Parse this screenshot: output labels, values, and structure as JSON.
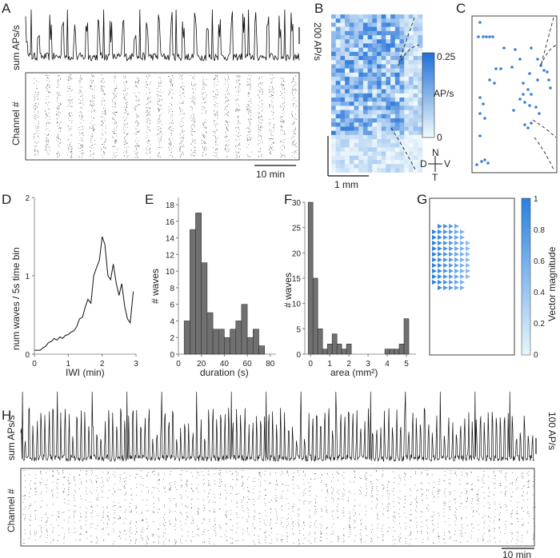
{
  "panels": {
    "A": "A",
    "B": "B",
    "C": "C",
    "D": "D",
    "E": "E",
    "F": "F",
    "G": "G",
    "H": "H"
  },
  "panelA": {
    "ylabel_top": "sum APs/s",
    "ylabel_raster": "Channel #",
    "scalebar_y": "200 AP/s",
    "scalebar_x": "10 min"
  },
  "panelB": {
    "colorbar_label": "AP/s",
    "colorbar_ticks": [
      "0.25",
      "0"
    ],
    "scalebar": "1 mm",
    "compass": {
      "n": "N",
      "d": "D",
      "v": "V",
      "t": "T"
    },
    "colormap": [
      "#f2fbfd",
      "#1e6fd8"
    ]
  },
  "panelG": {
    "colorbar_label": "Vector magnitude",
    "colorbar_ticks": [
      "0",
      "0.2",
      "0.4",
      "0.6",
      "0.8",
      "1"
    ],
    "colormap": [
      "#e6f7fb",
      "#2a7fe0"
    ]
  },
  "panelH": {
    "ylabel_top": "sum APs/s",
    "ylabel_raster": "Channel #",
    "scalebar_y": "100 AP/s",
    "scalebar_x": "10 min"
  },
  "colors": {
    "trace": "#111111",
    "bar": "#707070",
    "dot": "#3a7fd6"
  },
  "chart_data": [
    {
      "type": "line",
      "panel": "D",
      "xlabel": "IWI (min)",
      "ylabel": "num waves / 5s time bin",
      "xlim": [
        0,
        3
      ],
      "ylim": [
        0,
        2
      ],
      "xticks": [
        "0",
        "1",
        "2",
        "3"
      ],
      "yticks": [
        "0",
        "1",
        "2"
      ],
      "x": [
        0.0,
        0.08,
        0.17,
        0.25,
        0.33,
        0.42,
        0.5,
        0.58,
        0.67,
        0.75,
        0.83,
        0.92,
        1.0,
        1.08,
        1.17,
        1.25,
        1.33,
        1.42,
        1.5,
        1.58,
        1.67,
        1.75,
        1.83,
        1.92,
        2.0,
        2.08,
        2.17,
        2.25,
        2.33,
        2.42,
        2.5,
        2.58,
        2.67,
        2.75,
        2.83,
        2.92
      ],
      "values": [
        0.05,
        0.05,
        0.05,
        0.08,
        0.1,
        0.15,
        0.16,
        0.2,
        0.18,
        0.22,
        0.2,
        0.24,
        0.25,
        0.28,
        0.3,
        0.35,
        0.45,
        0.47,
        0.6,
        0.7,
        0.65,
        1.0,
        1.1,
        1.2,
        1.5,
        1.4,
        1.0,
        0.95,
        1.15,
        0.9,
        0.75,
        0.9,
        0.6,
        0.45,
        0.4,
        0.8
      ]
    },
    {
      "type": "bar",
      "panel": "E",
      "xlabel": "duration (s)",
      "ylabel": "# waves",
      "xlim": [
        0,
        85
      ],
      "ylim": [
        0,
        18
      ],
      "xticks": [
        "0",
        "20",
        "40",
        "60",
        "80"
      ],
      "yticks": [
        "0",
        "2",
        "4",
        "6",
        "8",
        "10",
        "12",
        "14",
        "16",
        "18"
      ],
      "bin_width": 5,
      "bin_starts": [
        5,
        10,
        15,
        20,
        25,
        30,
        35,
        40,
        45,
        50,
        55,
        60,
        65,
        70
      ],
      "values": [
        4,
        15,
        17,
        11,
        5,
        3,
        3,
        2,
        3,
        4,
        6,
        2,
        3,
        1
      ]
    },
    {
      "type": "bar",
      "panel": "F",
      "xlabel": "area (mm²)",
      "ylabel": "# waves",
      "xlim": [
        -0.3,
        5.5
      ],
      "ylim": [
        0,
        30
      ],
      "xticks": [
        "0",
        "1",
        "2",
        "3",
        "4",
        "5"
      ],
      "yticks": [
        "0",
        "5",
        "10",
        "15",
        "20",
        "25",
        "30"
      ],
      "bin_width": 0.25,
      "bin_starts": [
        -0.125,
        0.125,
        0.375,
        0.625,
        0.875,
        1.125,
        1.375,
        1.625,
        1.875,
        2.125,
        2.375,
        2.625,
        2.875,
        3.125,
        3.375,
        3.625,
        3.875,
        4.125,
        4.375,
        4.625,
        4.875
      ],
      "values": [
        30,
        15,
        5,
        1,
        2,
        4,
        2,
        1,
        2,
        0,
        0,
        0,
        0,
        0,
        0,
        0,
        1,
        1,
        1,
        2,
        7
      ]
    }
  ]
}
